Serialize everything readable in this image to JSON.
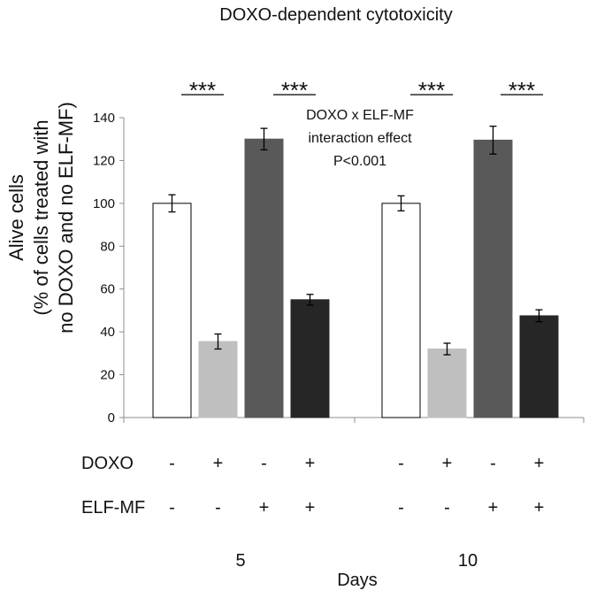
{
  "chart_data": {
    "type": "bar",
    "title": "DOXO-dependent cytotoxicity",
    "ylabel_lines": [
      "Alive cells",
      "(% of cells treated with",
      "no DOXO and no ELF-MF)"
    ],
    "xlabel": "Days",
    "ylim": [
      0,
      140
    ],
    "yticks": [
      0,
      20,
      40,
      60,
      80,
      100,
      120,
      140
    ],
    "grid": false,
    "categories": [
      "5",
      "10"
    ],
    "series": [
      {
        "name": "DOXO - / ELF-MF -",
        "color": "#ffffff",
        "values": [
          100,
          100
        ],
        "errors": [
          4,
          3.5
        ]
      },
      {
        "name": "DOXO + / ELF-MF -",
        "color": "#bfbfbf",
        "values": [
          35.5,
          32
        ],
        "errors": [
          3.5,
          2.7
        ]
      },
      {
        "name": "DOXO - / ELF-MF +",
        "color": "#595959",
        "values": [
          130,
          129.5
        ],
        "errors": [
          5,
          6.5
        ]
      },
      {
        "name": "DOXO + / ELF-MF +",
        "color": "#262626",
        "values": [
          55,
          47.5
        ],
        "errors": [
          2.5,
          2.8
        ]
      }
    ],
    "condition_rows": [
      {
        "label": "DOXO",
        "marks": [
          "-",
          "+",
          "-",
          "+",
          "-",
          "+",
          "-",
          "+"
        ]
      },
      {
        "label": "ELF-MF",
        "marks": [
          "-",
          "-",
          "+",
          "+",
          "-",
          "-",
          "+",
          "+"
        ]
      }
    ],
    "significance": [
      "***",
      "***",
      "***",
      "***"
    ],
    "annotation_lines": [
      "DOXO x ELF-MF",
      "interaction effect",
      "P<0.001"
    ]
  }
}
